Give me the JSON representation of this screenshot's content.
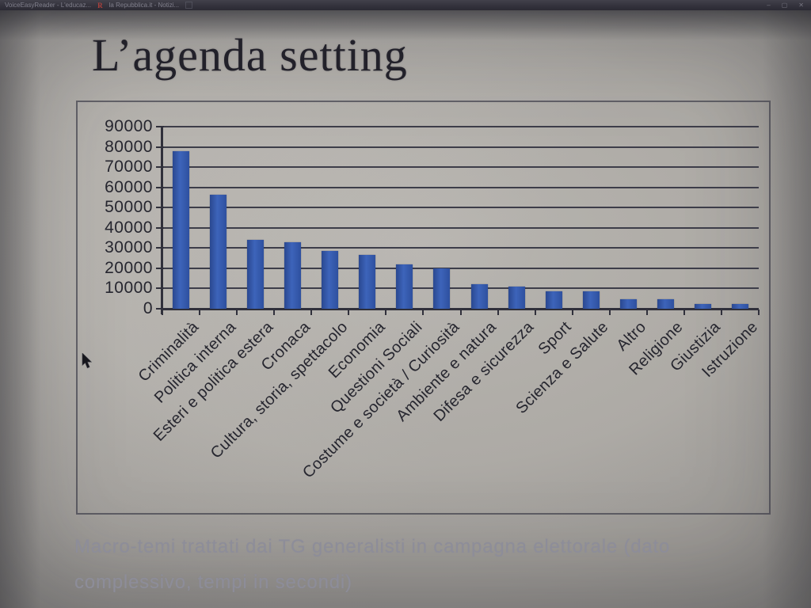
{
  "browser": {
    "tabs": [
      {
        "title": "VoiceEasyReader - L'educaz..."
      },
      {
        "title": "la Repubblica.it - Notizi..."
      }
    ],
    "tab2_favicon": "R",
    "window_controls": {
      "minimize": "–",
      "maximize": "▢",
      "close": "✕"
    }
  },
  "slide": {
    "title": "L’agenda setting",
    "caption_line1": "Macro-temi trattati dai TG generalisti in campagna elettorale (dato",
    "caption_line2": "complessivo, tempi in secondi)"
  },
  "chart_data": {
    "type": "bar",
    "title": "",
    "xlabel": "",
    "ylabel": "",
    "categories": [
      "Criminalità",
      "Politica interna",
      "Esteri e politica estera",
      "Cronaca",
      "Cultura, storia, spettacolo",
      "Economia",
      "Questioni Sociali",
      "Costume e società / Curiosità",
      "Ambiente e natura",
      "Difesa e sicurezza",
      "Sport",
      "Scienza e Salute",
      "Altro",
      "Religione",
      "Giustizia",
      "Istruzione"
    ],
    "values": [
      78000,
      56500,
      34000,
      33000,
      28500,
      26500,
      21800,
      20000,
      12000,
      10800,
      8800,
      8500,
      4800,
      4600,
      2300,
      2500
    ],
    "ylim": [
      0,
      90000
    ],
    "ytick_step": 10000,
    "grid": true,
    "legend": false,
    "bar_color": "#2f55a8",
    "x_label_rotation_deg": 45
  }
}
